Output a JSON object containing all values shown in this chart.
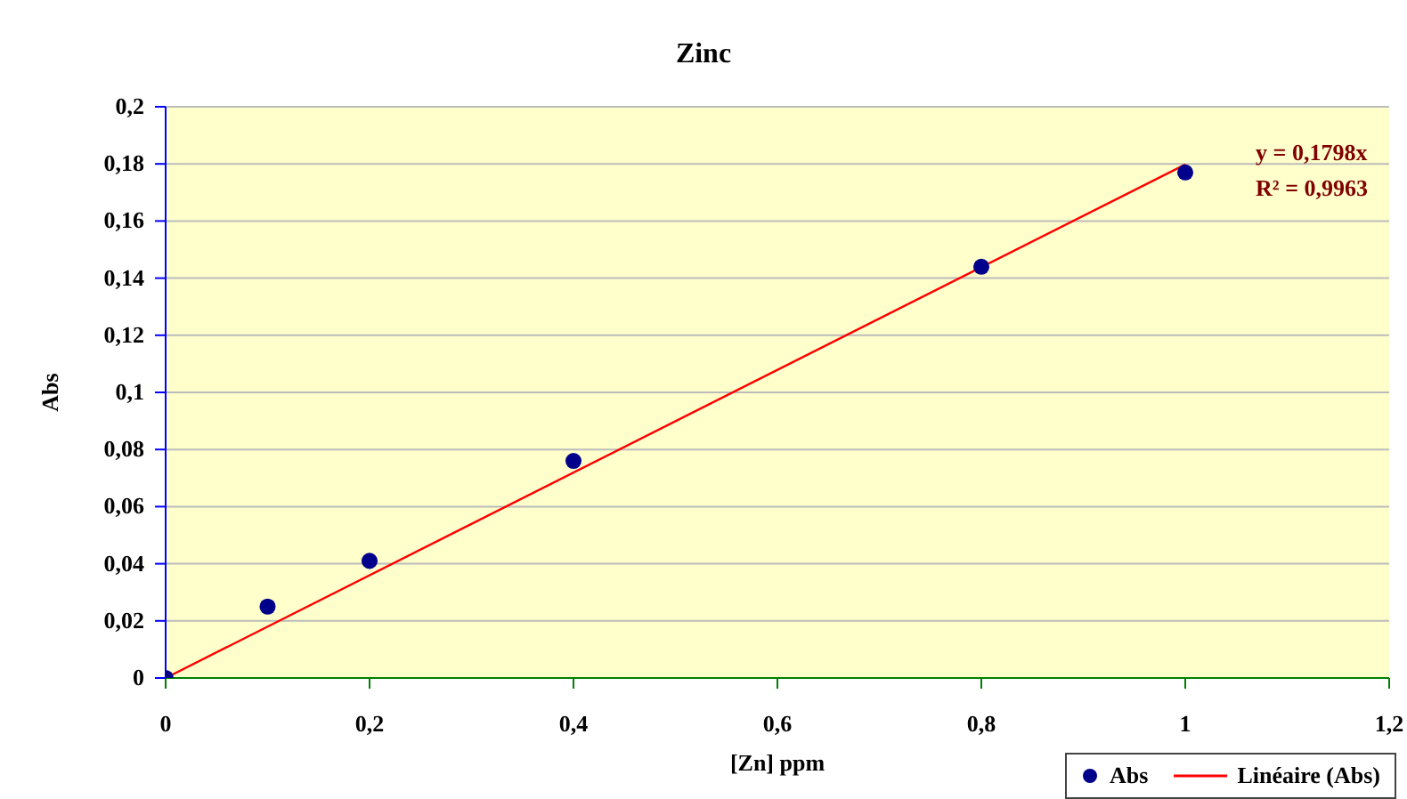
{
  "chart_data": {
    "type": "scatter",
    "title": "Zinc",
    "xlabel": "[Zn] ppm",
    "ylabel": "Abs",
    "xlim": [
      0,
      1.2
    ],
    "xticks": [
      0,
      {
        "value": 0.2,
        "label": "0,2"
      },
      {
        "value": 0.4,
        "label": "0,4"
      },
      {
        "value": 0.6,
        "label": "0,6"
      },
      {
        "value": 0.8,
        "label": "0,8"
      },
      1,
      {
        "value": 1.2,
        "label": "1,2"
      }
    ],
    "ylim": [
      0,
      0.2
    ],
    "yticks": [
      0,
      {
        "value": 0.02,
        "label": "0,02"
      },
      {
        "value": 0.04,
        "label": "0,04"
      },
      {
        "value": 0.06,
        "label": "0,06"
      },
      {
        "value": 0.08,
        "label": "0,08"
      },
      {
        "value": 0.1,
        "label": "0,1"
      },
      {
        "value": 0.12,
        "label": "0,12"
      },
      {
        "value": 0.14,
        "label": "0,14"
      },
      {
        "value": 0.16,
        "label": "0,16"
      },
      {
        "value": 0.18,
        "label": "0,18"
      },
      {
        "value": 0.2,
        "label": "0,2"
      }
    ],
    "series": [
      {
        "name": "Abs",
        "type": "scatter",
        "color": "#00008b",
        "marker": "circle",
        "x": [
          0,
          0.1,
          0.2,
          0.4,
          0.8,
          1
        ],
        "values": [
          0,
          0.025,
          0.041,
          0.076,
          0.144,
          0.177
        ]
      },
      {
        "name": "Linéaire (Abs)",
        "type": "line",
        "color": "#ff0000",
        "marker": "none",
        "line_style": "solid",
        "x": [
          0,
          1
        ],
        "values": [
          0,
          0.1798
        ]
      }
    ],
    "annotations": [
      "y = 0,1798x",
      "R² = 0,9963"
    ],
    "grid": "y",
    "legend": "bottom right"
  }
}
